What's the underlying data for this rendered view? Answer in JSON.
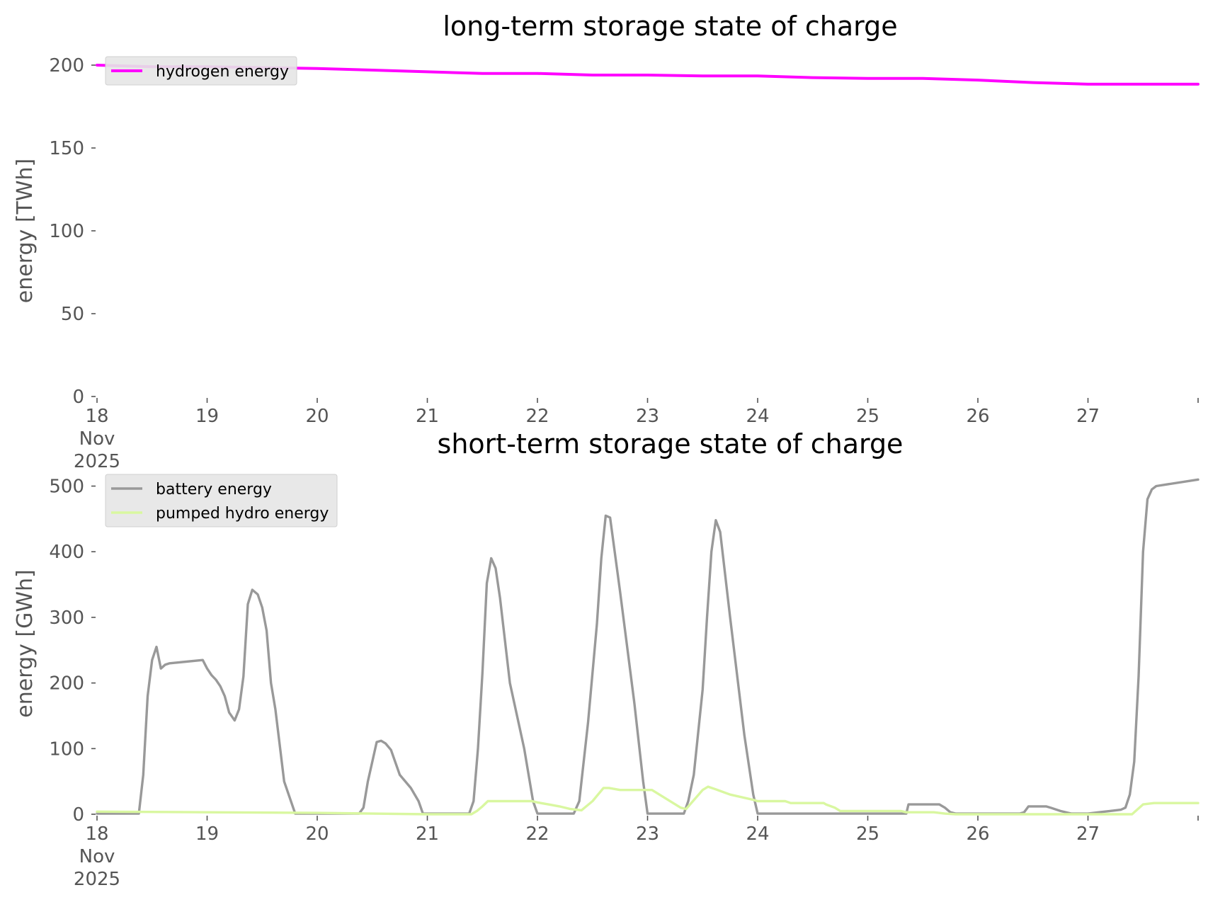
{
  "chart_data": [
    {
      "type": "line",
      "title": "long-term storage state of charge",
      "xlabel": "",
      "ylabel": "energy [TWh]",
      "ylim": [
        0,
        200
      ],
      "yticks": [
        "0",
        "50",
        "100",
        "150",
        "200"
      ],
      "xlim": [
        0,
        10
      ],
      "xticks": [
        {
          "pos": 0,
          "lines": [
            "18",
            "Nov",
            "2025"
          ]
        },
        {
          "pos": 1,
          "lines": [
            "19"
          ]
        },
        {
          "pos": 2,
          "lines": [
            "20"
          ]
        },
        {
          "pos": 3,
          "lines": [
            "21"
          ]
        },
        {
          "pos": 4,
          "lines": [
            "22"
          ]
        },
        {
          "pos": 5,
          "lines": [
            "23"
          ]
        },
        {
          "pos": 6,
          "lines": [
            "24"
          ]
        },
        {
          "pos": 7,
          "lines": [
            "25"
          ]
        },
        {
          "pos": 8,
          "lines": [
            "26"
          ]
        },
        {
          "pos": 9,
          "lines": [
            "27"
          ]
        },
        {
          "pos": 10,
          "lines": [
            ""
          ]
        }
      ],
      "grid": false,
      "legend_position": "top-left",
      "series": [
        {
          "name": "hydrogen energy",
          "color": "#ff00ff",
          "x": [
            0,
            0.5,
            1,
            1.5,
            2,
            2.5,
            3,
            3.5,
            4,
            4.5,
            5,
            5.5,
            6,
            6.5,
            7,
            7.5,
            8,
            8.5,
            9,
            9.5,
            10
          ],
          "y": [
            200,
            199,
            199,
            198.5,
            198,
            197,
            196,
            195,
            195,
            194,
            194,
            193.5,
            193.5,
            192.5,
            192,
            192,
            191,
            189.5,
            188.5,
            188.5,
            188.5
          ]
        }
      ]
    },
    {
      "type": "line",
      "title": "short-term storage state of charge",
      "xlabel": "",
      "ylabel": "energy [GWh]",
      "ylim": [
        0,
        520
      ],
      "yticks": [
        "0",
        "100",
        "200",
        "300",
        "400",
        "500"
      ],
      "xlim": [
        0,
        10
      ],
      "xticks": [
        {
          "pos": 0,
          "lines": [
            "18",
            "Nov",
            "2025"
          ]
        },
        {
          "pos": 1,
          "lines": [
            "19"
          ]
        },
        {
          "pos": 2,
          "lines": [
            "20"
          ]
        },
        {
          "pos": 3,
          "lines": [
            "21"
          ]
        },
        {
          "pos": 4,
          "lines": [
            "22"
          ]
        },
        {
          "pos": 5,
          "lines": [
            "23"
          ]
        },
        {
          "pos": 6,
          "lines": [
            "24"
          ]
        },
        {
          "pos": 7,
          "lines": [
            "25"
          ]
        },
        {
          "pos": 8,
          "lines": [
            "26"
          ]
        },
        {
          "pos": 9,
          "lines": [
            "27"
          ]
        },
        {
          "pos": 10,
          "lines": [
            ""
          ]
        }
      ],
      "grid": false,
      "legend_position": "top-left",
      "series": [
        {
          "name": "battery energy",
          "color": "#999999",
          "x": [
            0,
            0.38,
            0.42,
            0.46,
            0.5,
            0.54,
            0.58,
            0.62,
            0.66,
            0.96,
            1.0,
            1.04,
            1.08,
            1.12,
            1.16,
            1.2,
            1.25,
            1.29,
            1.33,
            1.37,
            1.41,
            1.46,
            1.5,
            1.54,
            1.58,
            1.62,
            1.7,
            1.8,
            1.9,
            1.96,
            2.0,
            2.38,
            2.42,
            2.46,
            2.5,
            2.54,
            2.58,
            2.62,
            2.67,
            2.75,
            2.85,
            2.92,
            2.96,
            3.0,
            3.38,
            3.42,
            3.46,
            3.5,
            3.54,
            3.58,
            3.62,
            3.66,
            3.75,
            3.88,
            3.96,
            4.0,
            4.33,
            4.38,
            4.46,
            4.54,
            4.58,
            4.62,
            4.66,
            4.75,
            4.88,
            4.96,
            5.0,
            5.33,
            5.37,
            5.42,
            5.5,
            5.54,
            5.58,
            5.62,
            5.66,
            5.75,
            5.88,
            5.96,
            6.0,
            6.2,
            7.35,
            7.37,
            7.65,
            7.7,
            7.75,
            7.8,
            8.2,
            8.25,
            8.3,
            8.38,
            8.42,
            8.46,
            8.62,
            8.66,
            8.75,
            8.85,
            9.0,
            9.1,
            9.2,
            9.3,
            9.34,
            9.38,
            9.42,
            9.46,
            9.5,
            9.54,
            9.58,
            9.62,
            10.0
          ],
          "y": [
            1,
            1,
            60,
            180,
            235,
            255,
            222,
            228,
            230,
            235,
            222,
            212,
            205,
            195,
            180,
            155,
            143,
            160,
            210,
            320,
            342,
            335,
            315,
            280,
            200,
            160,
            50,
            1,
            1,
            1,
            1,
            1,
            10,
            50,
            80,
            110,
            112,
            108,
            98,
            60,
            40,
            20,
            1,
            1,
            1,
            20,
            100,
            215,
            352,
            390,
            375,
            330,
            200,
            100,
            20,
            1,
            1,
            20,
            140,
            290,
            390,
            455,
            452,
            340,
            170,
            50,
            1,
            1,
            20,
            60,
            190,
            300,
            400,
            448,
            430,
            300,
            120,
            30,
            1,
            1,
            1,
            15,
            15,
            10,
            3,
            1,
            1,
            1,
            1,
            1,
            3,
            12,
            12,
            10,
            5,
            1,
            1,
            3,
            5,
            7,
            10,
            30,
            80,
            210,
            400,
            480,
            495,
            500,
            510
          ]
        },
        {
          "name": "pumped hydro energy",
          "color": "#d9f7a0",
          "x": [
            0,
            1.0,
            2.0,
            2.5,
            3.0,
            3.4,
            3.45,
            3.5,
            3.55,
            3.62,
            3.75,
            3.95,
            4.0,
            4.1,
            4.2,
            4.3,
            4.4,
            4.5,
            4.6,
            4.65,
            4.75,
            4.96,
            5.04,
            5.3,
            5.35,
            5.5,
            5.55,
            5.62,
            5.75,
            5.96,
            6.0,
            6.25,
            6.3,
            6.6,
            6.62,
            6.7,
            6.75,
            7.0,
            7.3,
            7.35,
            7.6,
            7.7,
            7.8,
            8.0,
            9.0,
            9.4,
            9.5,
            9.6,
            10.0
          ],
          "y": [
            4,
            3,
            2,
            1,
            0,
            0,
            5,
            12,
            20,
            20,
            20,
            20,
            18,
            15,
            12,
            8,
            6,
            20,
            40,
            40,
            37,
            37,
            37,
            10,
            8,
            37,
            42,
            38,
            30,
            22,
            20,
            20,
            17,
            17,
            15,
            10,
            5,
            5,
            5,
            3,
            3,
            1,
            0,
            0,
            0,
            0,
            15,
            17,
            17
          ]
        }
      ]
    }
  ]
}
